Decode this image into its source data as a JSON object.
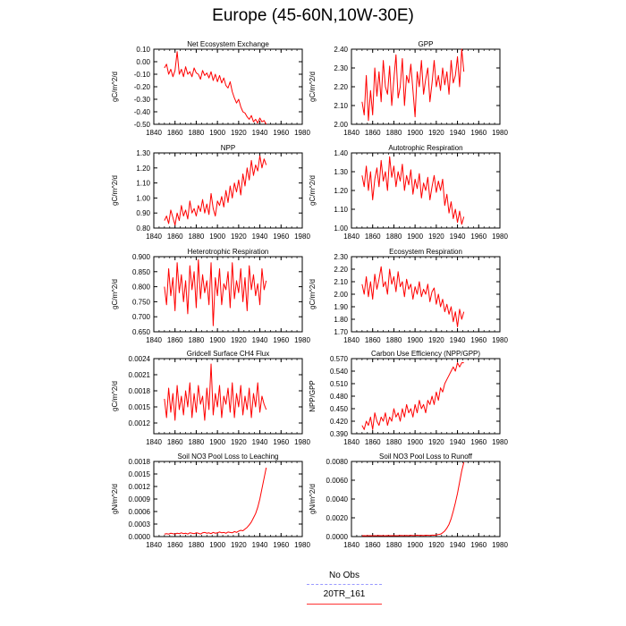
{
  "page": {
    "title": "Europe (45-60N,10W-30E)"
  },
  "legend": {
    "entries": [
      {
        "label": "No Obs",
        "color": "#9999ff",
        "style": "dashed"
      },
      {
        "label": "20TR_161",
        "color": "#ff3333",
        "style": "solid"
      }
    ]
  },
  "chart_data": [
    {
      "type": "line",
      "title": "Net Ecosystem Exchange",
      "ylabel": "gC/m^2/d",
      "xlim": [
        1840,
        1980
      ],
      "ylim": [
        -0.5,
        0.1
      ],
      "xticks": [
        1840,
        1860,
        1880,
        1900,
        1920,
        1940,
        1960,
        1980
      ],
      "yticks": [
        -0.5,
        -0.4,
        -0.3,
        -0.2,
        -0.1,
        0.0,
        0.1
      ],
      "ytick_labels": [
        "-0.50",
        "-0.40",
        "-0.30",
        "-0.20",
        "-0.10",
        "0.00",
        "0.10"
      ],
      "series": [
        {
          "color": "#ff0000",
          "x_start": 1850,
          "x_step": 2,
          "values": [
            -0.05,
            -0.02,
            -0.1,
            -0.06,
            -0.12,
            -0.07,
            0.08,
            -0.1,
            -0.06,
            -0.12,
            -0.04,
            -0.1,
            -0.08,
            -0.12,
            -0.05,
            -0.09,
            -0.1,
            -0.14,
            -0.07,
            -0.11,
            -0.09,
            -0.13,
            -0.08,
            -0.15,
            -0.1,
            -0.16,
            -0.11,
            -0.17,
            -0.13,
            -0.19,
            -0.21,
            -0.16,
            -0.24,
            -0.29,
            -0.33,
            -0.3,
            -0.36,
            -0.4,
            -0.41,
            -0.44,
            -0.46,
            -0.43,
            -0.48,
            -0.46,
            -0.49,
            -0.45,
            -0.48,
            -0.47,
            -0.5
          ]
        }
      ]
    },
    {
      "type": "line",
      "title": "GPP",
      "ylabel": "gC/m^2/d",
      "xlim": [
        1840,
        1980
      ],
      "ylim": [
        2.0,
        2.4
      ],
      "xticks": [
        1840,
        1860,
        1880,
        1900,
        1920,
        1940,
        1960,
        1980
      ],
      "yticks": [
        2.0,
        2.1,
        2.2,
        2.3,
        2.4
      ],
      "ytick_labels": [
        "2.00",
        "2.10",
        "2.20",
        "2.30",
        "2.40"
      ],
      "series": [
        {
          "color": "#ff0000",
          "x_start": 1850,
          "x_step": 2,
          "values": [
            2.12,
            2.05,
            2.26,
            2.02,
            2.18,
            2.05,
            2.3,
            2.15,
            2.28,
            2.12,
            2.34,
            2.2,
            2.16,
            2.31,
            2.1,
            2.24,
            2.37,
            2.14,
            2.2,
            2.35,
            2.1,
            2.26,
            2.22,
            2.32,
            2.18,
            2.04,
            2.28,
            2.2,
            2.34,
            2.16,
            2.24,
            2.3,
            2.12,
            2.22,
            2.34,
            2.2,
            2.26,
            2.18,
            2.3,
            2.21,
            2.28,
            2.16,
            2.34,
            2.22,
            2.26,
            2.36,
            2.2,
            2.4,
            2.28
          ]
        }
      ]
    },
    {
      "type": "line",
      "title": "NPP",
      "ylabel": "gC/m^2/d",
      "xlim": [
        1840,
        1980
      ],
      "ylim": [
        0.8,
        1.3
      ],
      "xticks": [
        1840,
        1860,
        1880,
        1900,
        1920,
        1940,
        1960,
        1980
      ],
      "yticks": [
        0.8,
        0.9,
        1.0,
        1.1,
        1.2,
        1.3
      ],
      "ytick_labels": [
        "0.80",
        "0.90",
        "1.00",
        "1.10",
        "1.20",
        "1.30"
      ],
      "series": [
        {
          "color": "#ff0000",
          "x_start": 1850,
          "x_step": 2,
          "values": [
            0.85,
            0.88,
            0.83,
            0.92,
            0.87,
            0.82,
            0.9,
            0.85,
            0.95,
            0.88,
            0.92,
            0.86,
            0.98,
            0.9,
            0.93,
            0.88,
            0.95,
            0.91,
            0.99,
            0.9,
            0.96,
            0.89,
            1.03,
            0.93,
            0.88,
            0.98,
            0.95,
            1.01,
            0.94,
            1.05,
            0.97,
            1.08,
            1.0,
            1.1,
            1.04,
            1.12,
            1.02,
            1.16,
            1.08,
            1.2,
            1.12,
            1.25,
            1.15,
            1.22,
            1.18,
            1.28,
            1.2,
            1.26,
            1.22
          ]
        }
      ]
    },
    {
      "type": "line",
      "title": "Autotrophic Respiration",
      "ylabel": "gC/m^2/d",
      "xlim": [
        1840,
        1980
      ],
      "ylim": [
        1.0,
        1.4
      ],
      "xticks": [
        1840,
        1860,
        1880,
        1900,
        1920,
        1940,
        1960,
        1980
      ],
      "yticks": [
        1.0,
        1.1,
        1.2,
        1.3,
        1.4
      ],
      "ytick_labels": [
        "1.00",
        "1.10",
        "1.20",
        "1.30",
        "1.40"
      ],
      "series": [
        {
          "color": "#ff0000",
          "x_start": 1850,
          "x_step": 2,
          "values": [
            1.28,
            1.22,
            1.33,
            1.2,
            1.3,
            1.15,
            1.26,
            1.32,
            1.22,
            1.36,
            1.25,
            1.3,
            1.2,
            1.38,
            1.27,
            1.33,
            1.22,
            1.3,
            1.25,
            1.34,
            1.2,
            1.28,
            1.23,
            1.31,
            1.18,
            1.26,
            1.21,
            1.29,
            1.16,
            1.24,
            1.2,
            1.27,
            1.15,
            1.22,
            1.28,
            1.19,
            1.25,
            1.2,
            1.26,
            1.12,
            1.18,
            1.08,
            1.14,
            1.05,
            1.1,
            1.03,
            1.09,
            1.02,
            1.06
          ]
        }
      ]
    },
    {
      "type": "line",
      "title": "Heterotrophic Respiration",
      "ylabel": "gC/m^2/d",
      "xlim": [
        1840,
        1980
      ],
      "ylim": [
        0.65,
        0.9
      ],
      "xticks": [
        1840,
        1860,
        1880,
        1900,
        1920,
        1940,
        1960,
        1980
      ],
      "yticks": [
        0.65,
        0.7,
        0.75,
        0.8,
        0.85,
        0.9
      ],
      "ytick_labels": [
        "0.650",
        "0.700",
        "0.750",
        "0.800",
        "0.850",
        "0.900"
      ],
      "series": [
        {
          "color": "#ff0000",
          "x_start": 1850,
          "x_step": 2,
          "values": [
            0.8,
            0.74,
            0.86,
            0.77,
            0.83,
            0.72,
            0.88,
            0.78,
            0.84,
            0.75,
            0.82,
            0.71,
            0.87,
            0.79,
            0.85,
            0.73,
            0.89,
            0.76,
            0.84,
            0.78,
            0.82,
            0.74,
            0.88,
            0.67,
            0.83,
            0.77,
            0.86,
            0.74,
            0.81,
            0.79,
            0.85,
            0.73,
            0.88,
            0.76,
            0.82,
            0.78,
            0.86,
            0.75,
            0.83,
            0.72,
            0.87,
            0.79,
            0.84,
            0.77,
            0.81,
            0.74,
            0.86,
            0.79,
            0.82
          ]
        }
      ]
    },
    {
      "type": "line",
      "title": "Ecosystem Respiration",
      "ylabel": "gC/m^2/d",
      "xlim": [
        1840,
        1980
      ],
      "ylim": [
        1.7,
        2.3
      ],
      "xticks": [
        1840,
        1860,
        1880,
        1900,
        1920,
        1940,
        1960,
        1980
      ],
      "yticks": [
        1.7,
        1.8,
        1.9,
        2.0,
        2.1,
        2.2,
        2.3
      ],
      "ytick_labels": [
        "1.70",
        "1.80",
        "1.90",
        "2.00",
        "2.10",
        "2.20",
        "2.30"
      ],
      "series": [
        {
          "color": "#ff0000",
          "x_start": 1850,
          "x_step": 2,
          "values": [
            2.08,
            2.0,
            2.14,
            1.98,
            2.1,
            1.96,
            2.16,
            2.04,
            2.12,
            2.22,
            2.06,
            2.1,
            2.0,
            2.2,
            2.08,
            2.14,
            2.02,
            2.18,
            2.06,
            2.1,
            1.98,
            2.12,
            2.04,
            2.08,
            1.96,
            2.06,
            2.0,
            2.1,
            1.98,
            2.04,
            2.0,
            2.08,
            1.94,
            2.02,
            2.05,
            1.92,
            2.0,
            1.9,
            1.96,
            1.86,
            1.92,
            1.84,
            1.9,
            1.78,
            1.86,
            1.74,
            1.88,
            1.8,
            1.86
          ]
        }
      ]
    },
    {
      "type": "line",
      "title": "Gridcell Surface CH4 Flux",
      "ylabel": "gC/m^2/d",
      "xlim": [
        1840,
        1980
      ],
      "ylim": [
        0.001,
        0.0024
      ],
      "xticks": [
        1840,
        1860,
        1880,
        1900,
        1920,
        1940,
        1960,
        1980
      ],
      "yticks": [
        0.0012,
        0.0015,
        0.0018,
        0.0021,
        0.0024
      ],
      "ytick_labels": [
        "0.0012",
        "0.0015",
        "0.0018",
        "0.0021",
        "0.0024"
      ],
      "series": [
        {
          "color": "#ff0000",
          "x_start": 1850,
          "x_step": 2,
          "values": [
            0.00165,
            0.0013,
            0.00185,
            0.0014,
            0.00175,
            0.00125,
            0.0019,
            0.00145,
            0.0017,
            0.00135,
            0.0018,
            0.0015,
            0.00195,
            0.0013,
            0.00175,
            0.0014,
            0.0019,
            0.00155,
            0.0017,
            0.00125,
            0.00185,
            0.00145,
            0.0023,
            0.00135,
            0.00175,
            0.0015,
            0.0019,
            0.0013,
            0.0017,
            0.00155,
            0.00185,
            0.0014,
            0.00195,
            0.0013,
            0.00175,
            0.0015,
            0.0019,
            0.00135,
            0.0017,
            0.00145,
            0.00185,
            0.0013,
            0.00175,
            0.0015,
            0.00195,
            0.0014,
            0.0017,
            0.00155,
            0.00145
          ]
        }
      ]
    },
    {
      "type": "line",
      "title": "Carbon Use Efficiency (NPP/GPP)",
      "ylabel": "NPP/GPP",
      "xlim": [
        1840,
        1980
      ],
      "ylim": [
        0.39,
        0.57
      ],
      "xticks": [
        1840,
        1860,
        1880,
        1900,
        1920,
        1940,
        1960,
        1980
      ],
      "yticks": [
        0.39,
        0.42,
        0.45,
        0.48,
        0.51,
        0.54,
        0.57
      ],
      "ytick_labels": [
        "0.390",
        "0.420",
        "0.450",
        "0.480",
        "0.510",
        "0.540",
        "0.570"
      ],
      "series": [
        {
          "color": "#ff0000",
          "x_start": 1850,
          "x_step": 2,
          "values": [
            0.41,
            0.4,
            0.42,
            0.41,
            0.43,
            0.4,
            0.44,
            0.42,
            0.41,
            0.43,
            0.42,
            0.44,
            0.41,
            0.43,
            0.42,
            0.45,
            0.43,
            0.44,
            0.42,
            0.45,
            0.43,
            0.46,
            0.44,
            0.45,
            0.43,
            0.46,
            0.44,
            0.47,
            0.45,
            0.46,
            0.44,
            0.47,
            0.46,
            0.48,
            0.46,
            0.49,
            0.47,
            0.5,
            0.49,
            0.51,
            0.52,
            0.53,
            0.54,
            0.55,
            0.54,
            0.56,
            0.55,
            0.56,
            0.56
          ]
        }
      ]
    },
    {
      "type": "line",
      "title": "Soil NO3 Pool Loss to Leaching",
      "ylabel": "gN/m^2/d",
      "xlim": [
        1840,
        1980
      ],
      "ylim": [
        0.0,
        0.0018
      ],
      "xticks": [
        1840,
        1860,
        1880,
        1900,
        1920,
        1940,
        1960,
        1980
      ],
      "yticks": [
        0.0,
        0.0003,
        0.0006,
        0.0009,
        0.0012,
        0.0015,
        0.0018
      ],
      "ytick_labels": [
        "0.0000",
        "0.0003",
        "0.0006",
        "0.0009",
        "0.0012",
        "0.0015",
        "0.0018"
      ],
      "series": [
        {
          "color": "#ff0000",
          "x_start": 1850,
          "x_step": 2,
          "values": [
            6e-05,
            7e-05,
            6e-05,
            8e-05,
            7e-05,
            6e-05,
            8e-05,
            7e-05,
            9e-05,
            7e-05,
            8e-05,
            6e-05,
            9e-05,
            8e-05,
            7e-05,
            9e-05,
            8e-05,
            6e-05,
            9e-05,
            0.0001,
            8e-05,
            9e-05,
            7e-05,
            0.0001,
            8e-05,
            9e-05,
            0.00011,
            9e-05,
            0.0001,
            8e-05,
            0.00011,
            0.0001,
            9e-05,
            0.00012,
            0.0001,
            0.00013,
            0.00015,
            0.00014,
            0.00018,
            0.00022,
            0.00028,
            0.00035,
            0.00045,
            0.00055,
            0.0007,
            0.0009,
            0.00115,
            0.0014,
            0.00165
          ]
        }
      ]
    },
    {
      "type": "line",
      "title": "Soil NO3 Pool Loss to Runoff",
      "ylabel": "gN/m^2/d",
      "xlim": [
        1840,
        1980
      ],
      "ylim": [
        0.0,
        0.008
      ],
      "xticks": [
        1840,
        1860,
        1880,
        1900,
        1920,
        1940,
        1960,
        1980
      ],
      "yticks": [
        0.0,
        0.002,
        0.004,
        0.006,
        0.008
      ],
      "ytick_labels": [
        "0.0000",
        "0.0020",
        "0.0040",
        "0.0060",
        "0.0080"
      ],
      "series": [
        {
          "color": "#ff0000",
          "x_start": 1850,
          "x_step": 2,
          "values": [
            8e-05,
            9e-05,
            8e-05,
            0.0001,
            9e-05,
            8e-05,
            0.0001,
            9e-05,
            0.00011,
            9e-05,
            0.0001,
            8e-05,
            0.00011,
            0.0001,
            9e-05,
            0.00011,
            0.0001,
            9e-05,
            0.00012,
            0.00011,
            0.0001,
            0.00012,
            0.0001,
            0.00013,
            0.00011,
            0.00012,
            0.00014,
            0.00012,
            0.00013,
            0.00011,
            0.00014,
            0.00013,
            0.00012,
            0.00016,
            0.00014,
            0.00018,
            0.00022,
            0.00026,
            0.0004,
            0.0006,
            0.0009,
            0.0013,
            0.0019,
            0.0027,
            0.0036,
            0.0046,
            0.0058,
            0.007,
            0.0079
          ]
        }
      ]
    }
  ]
}
